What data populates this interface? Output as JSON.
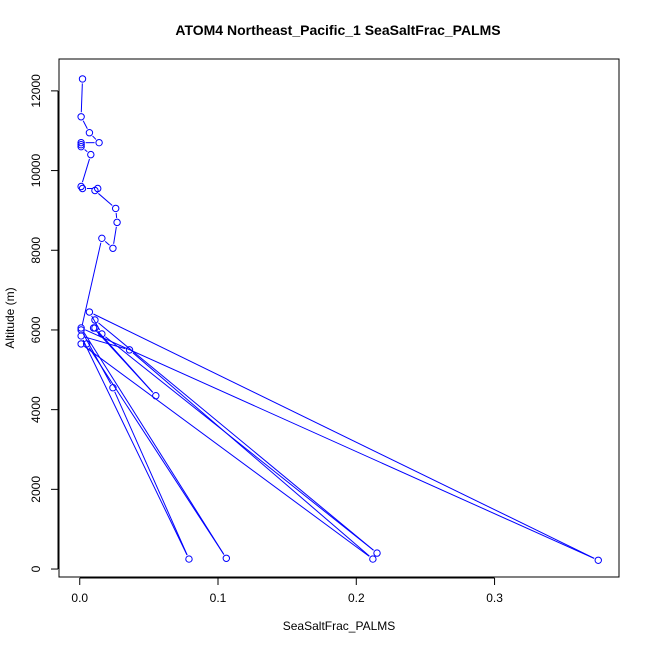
{
  "chart_data": {
    "type": "line",
    "title": "ATOM4 Northeast_Pacific_1 SeaSaltFrac_PALMS",
    "xlabel": "SeaSaltFrac_PALMS",
    "ylabel": "Altitude (m)",
    "xlim": [
      -0.015,
      0.39
    ],
    "ylim": [
      -200,
      12800
    ],
    "xticks": [
      0.0,
      0.1,
      0.2,
      0.3
    ],
    "xtick_labels": [
      "0.0",
      "0.1",
      "0.2",
      "0.3"
    ],
    "yticks": [
      0,
      2000,
      4000,
      6000,
      8000,
      10000,
      12000
    ],
    "ytick_labels": [
      "0",
      "2000",
      "4000",
      "6000",
      "8000",
      "10000",
      "12000"
    ],
    "grid": false,
    "legend": "none",
    "line_color": "#0000ff",
    "marker": "open-circle",
    "series": [
      {
        "x": [
          0.002,
          0.001,
          0.007,
          0.014,
          0.001,
          0.001,
          0.001,
          0.008,
          0.001,
          0.002,
          0.013,
          0.011,
          0.026,
          0.027,
          0.024,
          0.016,
          0.001,
          0.024,
          0.079,
          0.001,
          0.036,
          0.212,
          0.001,
          0.005,
          0.106,
          0.001,
          0.375,
          0.007,
          0.016,
          0.215,
          0.011,
          0.011,
          0.055,
          0.01
        ],
        "y": [
          12300,
          11350,
          10950,
          10700,
          10700,
          10650,
          10600,
          10400,
          9600,
          9550,
          9550,
          9500,
          9050,
          8700,
          8050,
          8300,
          6000,
          4550,
          250,
          5850,
          5500,
          250,
          5650,
          5650,
          270,
          6050,
          220,
          6450,
          5900,
          400,
          6250,
          6050,
          4350,
          6050
        ]
      }
    ]
  }
}
